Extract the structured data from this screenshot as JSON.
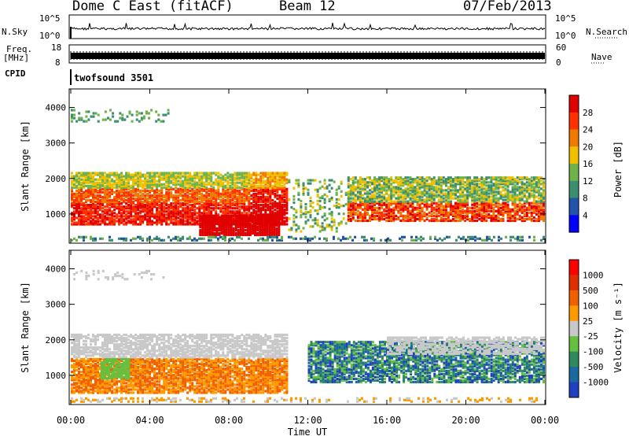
{
  "header": {
    "station": "Dome C East (fitACF)",
    "beam": "Beam 12",
    "date": "07/Feb/2013"
  },
  "side_labels": {
    "nsky": "N.Sky",
    "freq": "Freq.",
    "mhz": "[MHz]",
    "cpid": "CPID",
    "nsearch": "N.Search",
    "nave": "Nave"
  },
  "cpid_text": "twofsound 3501",
  "colors": {
    "power": [
      "#0000ff",
      "#2255aa",
      "#3b8f6f",
      "#6fb24a",
      "#f0c000",
      "#f07a00",
      "#ff3300",
      "#e00000"
    ],
    "velocity": [
      "#2040c0",
      "#1a6aa0",
      "#2f8a60",
      "#66c040",
      "#c8c8c8",
      "#ff9900",
      "#f06000",
      "#e03000",
      "#ff0000"
    ]
  },
  "chart_data": [
    {
      "type": "line",
      "name": "noise_panel",
      "yticks_left": [
        "10^5",
        "10^0"
      ],
      "yticks_right": [
        "10^5",
        "10^0"
      ]
    },
    {
      "type": "line",
      "name": "freq_nave_panel",
      "yticks_left": [
        18,
        8
      ],
      "yticks_right": [
        60,
        0
      ]
    },
    {
      "type": "heatmap",
      "name": "power",
      "ylabel": "Slant Range [km]",
      "yticks": [
        1000,
        2000,
        3000,
        4000
      ],
      "ylim": [
        200,
        4500
      ],
      "colorbar": {
        "label": "Power [dB]",
        "ticks": [
          28,
          24,
          20,
          16,
          12,
          8,
          4
        ]
      }
    },
    {
      "type": "heatmap",
      "name": "velocity",
      "ylabel": "Slant Range [km]",
      "yticks": [
        1000,
        2000,
        3000,
        4000
      ],
      "ylim": [
        200,
        4500
      ],
      "colorbar": {
        "label": "Velocity [m s⁻¹]",
        "ticks": [
          1000,
          500,
          100,
          25,
          -25,
          -100,
          -500,
          -1000
        ]
      }
    }
  ],
  "xaxis": {
    "label": "Time UT",
    "ticks": [
      "00:00",
      "04:00",
      "08:00",
      "12:00",
      "16:00",
      "20:00",
      "00:00"
    ]
  }
}
